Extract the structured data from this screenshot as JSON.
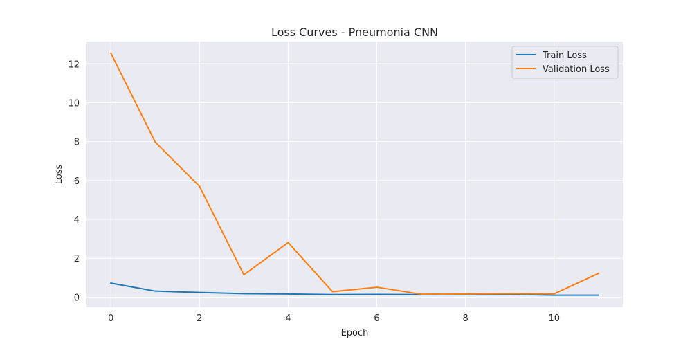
{
  "chart_data": {
    "type": "line",
    "title": "Loss Curves - Pneumonia CNN",
    "xlabel": "Epoch",
    "ylabel": "Loss",
    "x": [
      0,
      1,
      2,
      3,
      4,
      5,
      6,
      7,
      8,
      9,
      10,
      11
    ],
    "xlim": [
      -0.55,
      11.55
    ],
    "ylim": [
      -0.52,
      13.15
    ],
    "xticks": [
      0,
      2,
      4,
      6,
      8,
      10
    ],
    "yticks": [
      0,
      2,
      4,
      6,
      8,
      10,
      12
    ],
    "grid": true,
    "legend_position": "top-right",
    "background": "#eaeaf2",
    "series": [
      {
        "name": "Train Loss",
        "color": "#1f77b4",
        "values": [
          0.72,
          0.31,
          0.24,
          0.18,
          0.16,
          0.13,
          0.14,
          0.13,
          0.13,
          0.14,
          0.1,
          0.1
        ]
      },
      {
        "name": "Validation Loss",
        "color": "#ff7f0e",
        "values": [
          12.55,
          7.98,
          5.7,
          1.15,
          2.81,
          0.28,
          0.51,
          0.15,
          0.16,
          0.18,
          0.17,
          1.22
        ]
      }
    ]
  }
}
